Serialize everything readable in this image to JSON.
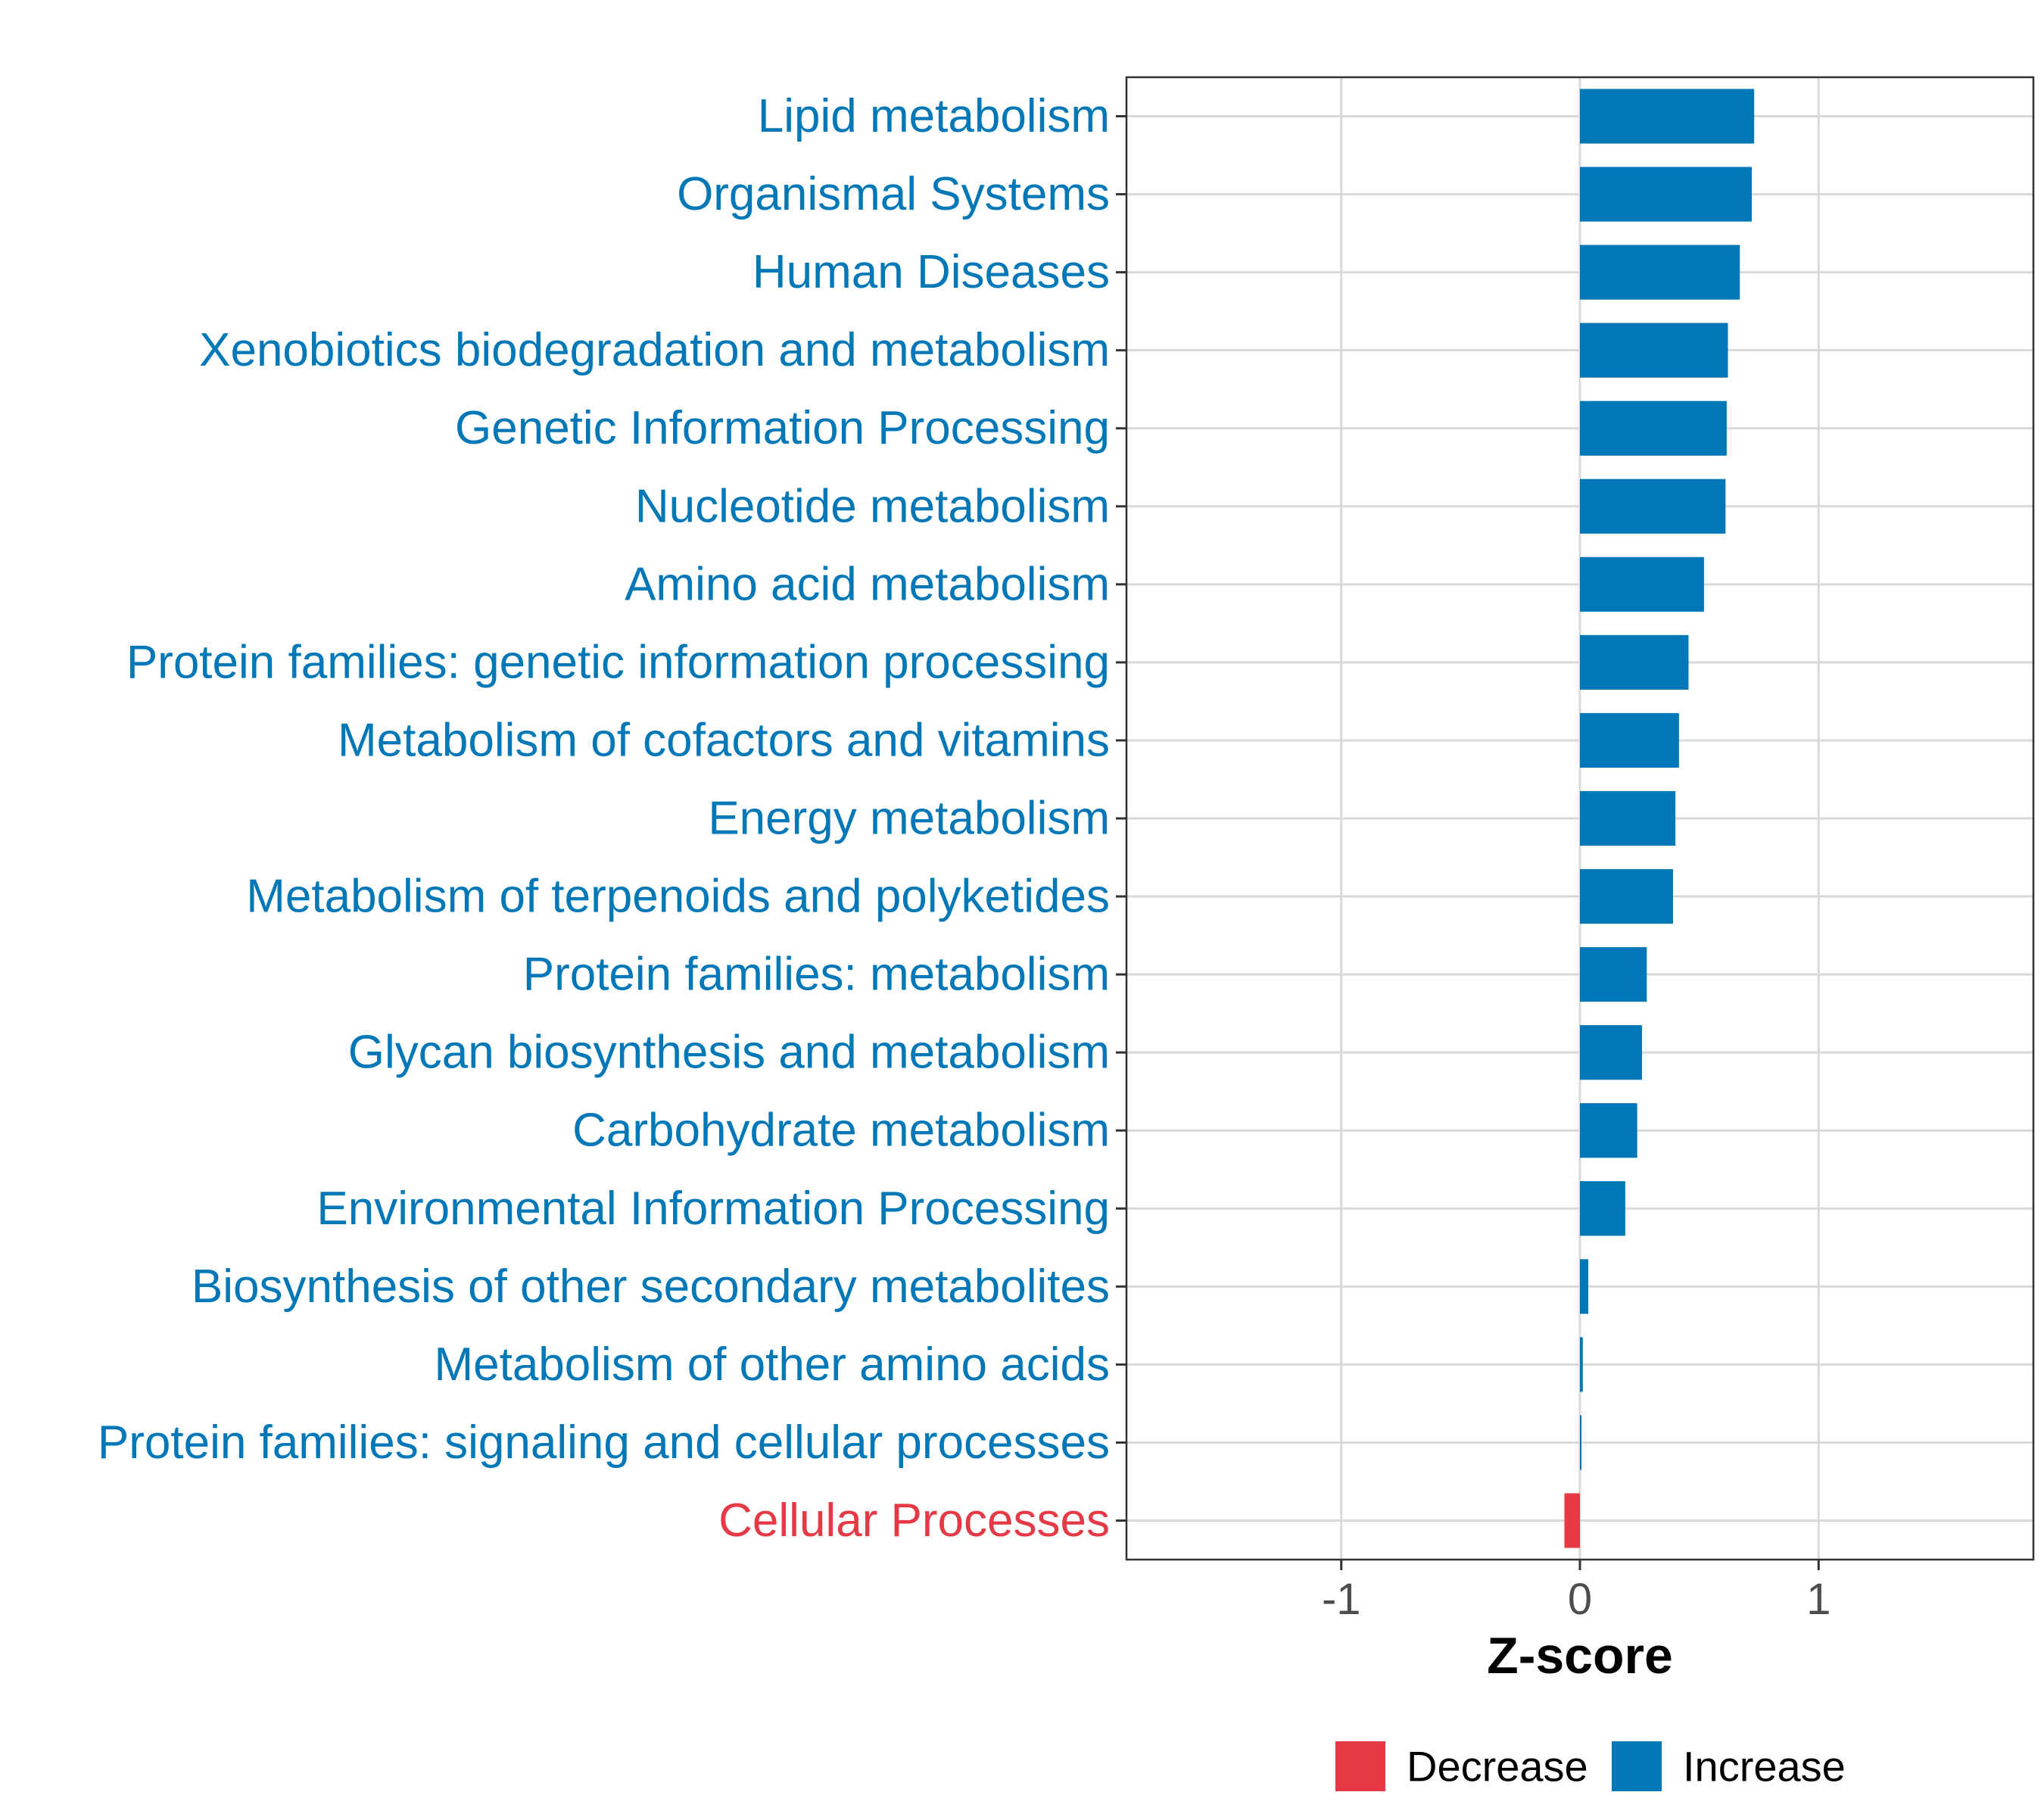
{
  "chart_data": {
    "type": "bar",
    "orientation": "horizontal",
    "title": "",
    "xlabel": "Z-score",
    "ylabel": "",
    "xlim": [
      -1.9,
      1.9
    ],
    "xticks": [
      -1,
      0,
      1
    ],
    "xtick_labels": [
      "-1",
      "0",
      "1"
    ],
    "grid": true,
    "categories": [
      "Lipid metabolism",
      "Organismal Systems",
      "Human Diseases",
      "Xenobiotics biodegradation and metabolism",
      "Genetic Information Processing",
      "Nucleotide metabolism",
      "Amino acid metabolism",
      "Protein families: genetic information processing",
      "Metabolism of cofactors and vitamins",
      "Energy metabolism",
      "Metabolism of terpenoids and polyketides",
      "Protein families: metabolism",
      "Glycan biosynthesis and metabolism",
      "Carbohydrate metabolism",
      "Environmental Information Processing",
      "Biosynthesis of other secondary metabolites",
      "Metabolism of other amino acids",
      "Protein families: signaling and cellular processes",
      "Cellular Processes"
    ],
    "values": [
      0.73,
      0.72,
      0.67,
      0.62,
      0.615,
      0.61,
      0.52,
      0.455,
      0.415,
      0.4,
      0.39,
      0.28,
      0.26,
      0.24,
      0.19,
      0.035,
      0.012,
      0.006,
      -0.065
    ],
    "groups": [
      "Increase",
      "Increase",
      "Increase",
      "Increase",
      "Increase",
      "Increase",
      "Increase",
      "Increase",
      "Increase",
      "Increase",
      "Increase",
      "Increase",
      "Increase",
      "Increase",
      "Increase",
      "Increase",
      "Increase",
      "Increase",
      "Decrease"
    ],
    "legend": {
      "position": "bottom",
      "entries": [
        {
          "label": "Decrease",
          "color": "#e63946"
        },
        {
          "label": "Increase",
          "color": "#0077b6"
        }
      ]
    },
    "colors": {
      "Decrease": "#e63946",
      "Increase": "#0077b6"
    }
  }
}
